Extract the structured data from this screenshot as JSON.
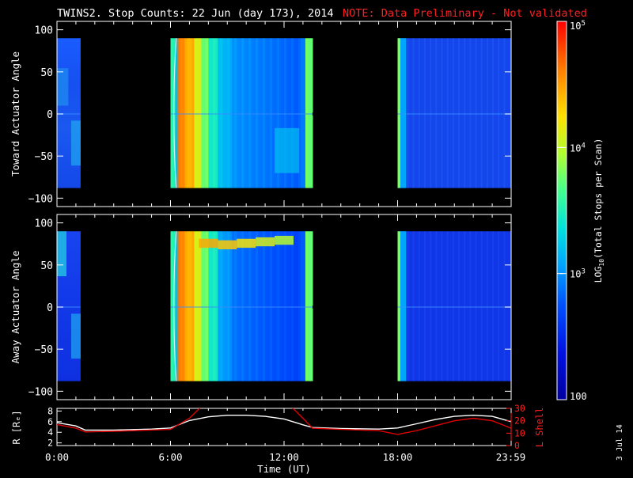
{
  "title": "TWINS2. Stop Counts: 22 Jun (day 173), 2014",
  "note": "NOTE: Data Preliminary - Not validated",
  "date_stamp": "3 Jul 14",
  "colors": {
    "note": "#ff2020",
    "r_line": "#ffffff",
    "lshell_line": "#e00000",
    "background": "#000000"
  },
  "chart_data": [
    {
      "type": "heatmap",
      "panel": "toward",
      "ylabel": "Toward Actuator Angle",
      "ylim": [
        -110,
        110
      ],
      "yticks": [
        "100",
        "50",
        "0",
        "−50",
        "−100"
      ],
      "ytick_values": [
        100,
        50,
        0,
        -50,
        -100
      ],
      "data_y_range": [
        -88,
        90
      ],
      "xlim_hours": [
        0,
        24
      ],
      "segments": [
        {
          "start_h": 0.0,
          "end_h": 1.25,
          "level": "low"
        },
        {
          "start_h": 6.0,
          "end_h": 13.5,
          "level": "high-decaying"
        },
        {
          "start_h": 18.0,
          "end_h": 24.0,
          "level": "low"
        }
      ]
    },
    {
      "type": "heatmap",
      "panel": "away",
      "ylabel": "Away Actuator Angle",
      "ylim": [
        -110,
        110
      ],
      "yticks": [
        "100",
        "50",
        "0",
        "−50",
        "−100"
      ],
      "ytick_values": [
        100,
        50,
        0,
        -50,
        -100
      ],
      "data_y_range": [
        -88,
        90
      ],
      "xlim_hours": [
        0,
        24
      ],
      "segments": [
        {
          "start_h": 0.0,
          "end_h": 1.25,
          "level": "low"
        },
        {
          "start_h": 6.0,
          "end_h": 13.5,
          "level": "high-decaying"
        },
        {
          "start_h": 18.0,
          "end_h": 24.0,
          "level": "low"
        }
      ]
    },
    {
      "type": "line",
      "panel": "orbit",
      "ylabel_left": "R [Rₑ]",
      "ylabel_right": "L Shell",
      "yticks_left": [
        "8",
        "6",
        "4",
        "2"
      ],
      "ytick_left_values": [
        8,
        6,
        4,
        2
      ],
      "ylim_left": [
        1.5,
        8.5
      ],
      "yticks_right": [
        "30",
        "20",
        "10",
        "0"
      ],
      "ytick_right_values": [
        30,
        20,
        10,
        0
      ],
      "ylim_right": [
        0,
        30
      ],
      "xlabel": "Time (UT)",
      "xtick_labels": [
        "0:00",
        "6:00",
        "12:00",
        "18:00",
        "23:59"
      ],
      "xtick_hours": [
        0,
        6,
        12,
        18,
        23.98
      ],
      "series": [
        {
          "axis": "left",
          "color": "#ffffff",
          "x": [
            0,
            1,
            1.5,
            3,
            5,
            6,
            7,
            8,
            9,
            10,
            11,
            12,
            13,
            13.5,
            15,
            17,
            18,
            19,
            20,
            21,
            22,
            23,
            24
          ],
          "y": [
            5.8,
            5.2,
            4.4,
            4.4,
            4.6,
            4.8,
            6.2,
            6.9,
            7.2,
            7.2,
            7.0,
            6.5,
            5.4,
            4.9,
            4.7,
            4.6,
            4.8,
            5.6,
            6.4,
            7.0,
            7.2,
            7.0,
            6.0
          ]
        },
        {
          "axis": "right",
          "color": "#e00000",
          "x": [
            0,
            1,
            1.5,
            3,
            5,
            6,
            7,
            7.6,
            12.4,
            13,
            13.5,
            15,
            17,
            18,
            19,
            20,
            21,
            22,
            23,
            24
          ],
          "y": [
            17,
            14,
            11,
            11.5,
            12.5,
            13,
            22,
            31,
            31,
            22,
            14,
            13,
            12,
            9,
            12,
            16,
            20,
            22,
            20,
            14
          ]
        }
      ]
    },
    {
      "type": "colorbar",
      "label": "LOG10(Total Stops per Scan)",
      "label_main": "LOG",
      "label_sub": "10",
      "label_rest": "(Total Stops per Scan)",
      "tick_labels": [
        {
          "base": "10",
          "exp": "5",
          "value": 100000
        },
        {
          "base": "10",
          "exp": "4",
          "value": 10000
        },
        {
          "base": "10",
          "exp": "3",
          "value": 1000
        },
        {
          "base": "100",
          "exp": "",
          "value": 100
        }
      ],
      "range": [
        100,
        100000
      ],
      "scale": "log"
    }
  ]
}
